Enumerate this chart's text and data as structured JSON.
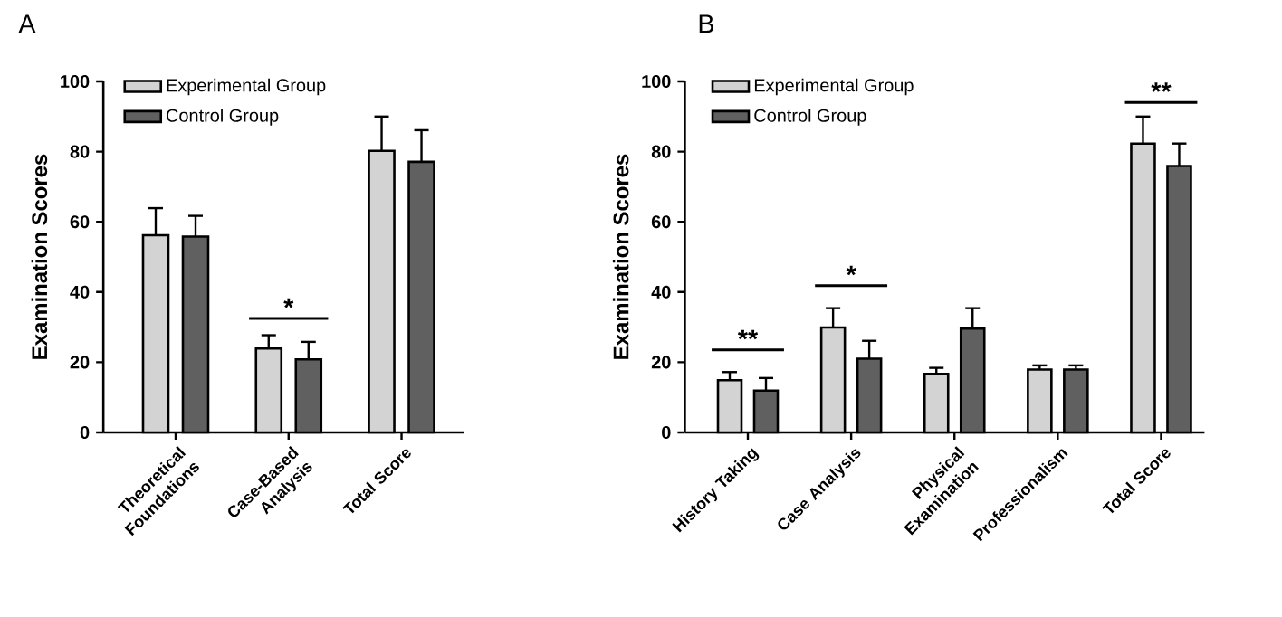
{
  "chart_data": [
    {
      "type": "bar",
      "title": "A",
      "ylabel": "Examination Scores",
      "categories": [
        "Theoretical Foundations",
        "Case-Based Analysis",
        "Total Score"
      ],
      "series": [
        {
          "name": "Experimental Group",
          "color": "#d3d3d3",
          "values": [
            56.2,
            23.9,
            80.2
          ],
          "errors": [
            7.7,
            3.8,
            9.8
          ]
        },
        {
          "name": "Control Group",
          "color": "#606060",
          "values": [
            55.8,
            20.8,
            77.1
          ],
          "errors": [
            5.9,
            5.0,
            9.0
          ]
        }
      ],
      "ylim": [
        0,
        100
      ],
      "yticks": [
        0,
        20,
        40,
        60,
        80,
        100
      ],
      "legend": "top left",
      "annotations": [
        "*"
      ]
    },
    {
      "type": "bar",
      "title": "B",
      "ylabel": "Examination Scores",
      "categories": [
        "History Taking",
        "Case Analysis",
        "Physical Examination",
        "Professionalism",
        "Total Score"
      ],
      "series": [
        {
          "name": "Experimental Group",
          "color": "#d3d3d3",
          "values": [
            14.9,
            29.9,
            16.7,
            17.9,
            82.3
          ],
          "errors": [
            2.3,
            5.5,
            1.7,
            1.2,
            7.7
          ]
        },
        {
          "name": "Control Group",
          "color": "#606060",
          "values": [
            11.9,
            21.0,
            29.6,
            17.9,
            75.9
          ],
          "errors": [
            3.6,
            5.1,
            5.8,
            1.2,
            6.4
          ]
        }
      ],
      "ylim": [
        0,
        100
      ],
      "yticks": [
        0,
        20,
        40,
        60,
        80,
        100
      ],
      "legend": "top left",
      "annotations": [
        "**",
        "*",
        "**"
      ]
    }
  ]
}
